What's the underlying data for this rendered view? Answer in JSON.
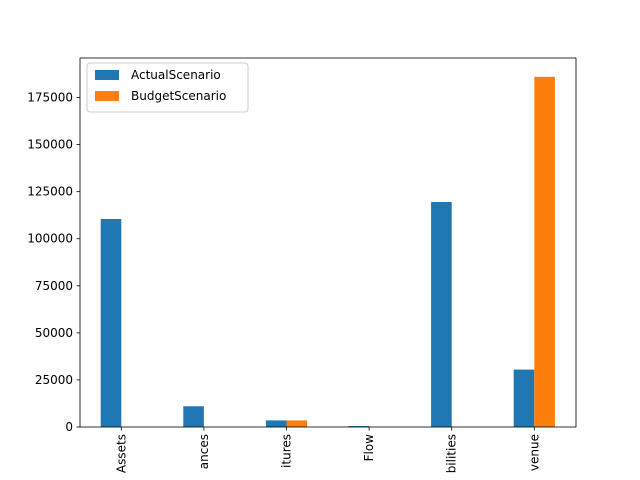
{
  "chart_data": {
    "type": "bar",
    "title": "",
    "xlabel": "",
    "ylabel": "",
    "categories": [
      "Assets",
      "ances",
      "itures",
      "Flow",
      "bilities",
      "venue"
    ],
    "series": [
      {
        "name": "ActualScenario",
        "color": "#1f77b4",
        "values": [
          110500,
          11000,
          3500,
          500,
          119500,
          30500
        ]
      },
      {
        "name": "BudgetScenario",
        "color": "#ff7f0e",
        "values": [
          0,
          0,
          3500,
          0,
          0,
          186000
        ]
      }
    ],
    "ylim": [
      0,
      196000
    ],
    "yticks": [
      0,
      25000,
      50000,
      75000,
      100000,
      125000,
      150000,
      175000
    ],
    "ytick_labels": [
      "0",
      "25000",
      "50000",
      "75000",
      "100000",
      "125000",
      "150000",
      "175000"
    ],
    "legend": "upper-left",
    "grid": false
  }
}
